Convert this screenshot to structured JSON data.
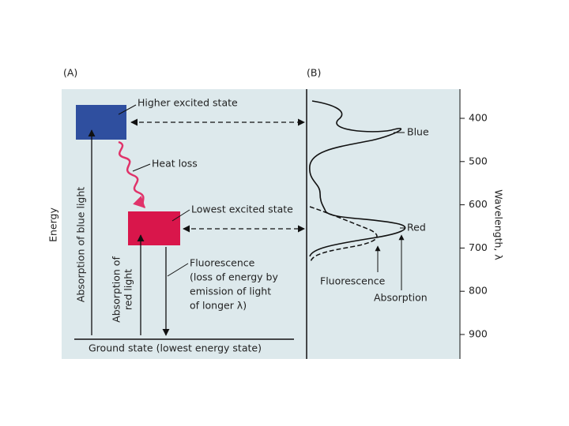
{
  "panel_a": {
    "label": "(A)",
    "energy_axis": "Energy",
    "higher_state": "Higher excited state",
    "heat_loss": "Heat loss",
    "lowest_state": "Lowest excited state",
    "fluorescence": [
      "Fluorescence",
      "(loss of energy by",
      "emission of light",
      "of longer λ)"
    ],
    "blue_absorption": "Absorption of blue light",
    "red_absorption": [
      "Absorption of",
      "red light"
    ],
    "ground_state": "Ground state (lowest energy state)"
  },
  "panel_b": {
    "label": "(B)",
    "axis_title": "Wavelength, λ",
    "ticks": [
      400,
      500,
      600,
      700,
      800,
      900
    ],
    "blue_peak": "Blue",
    "red_peak": "Red",
    "fluorescence": "Fluorescence",
    "absorption": "Absorption"
  }
}
